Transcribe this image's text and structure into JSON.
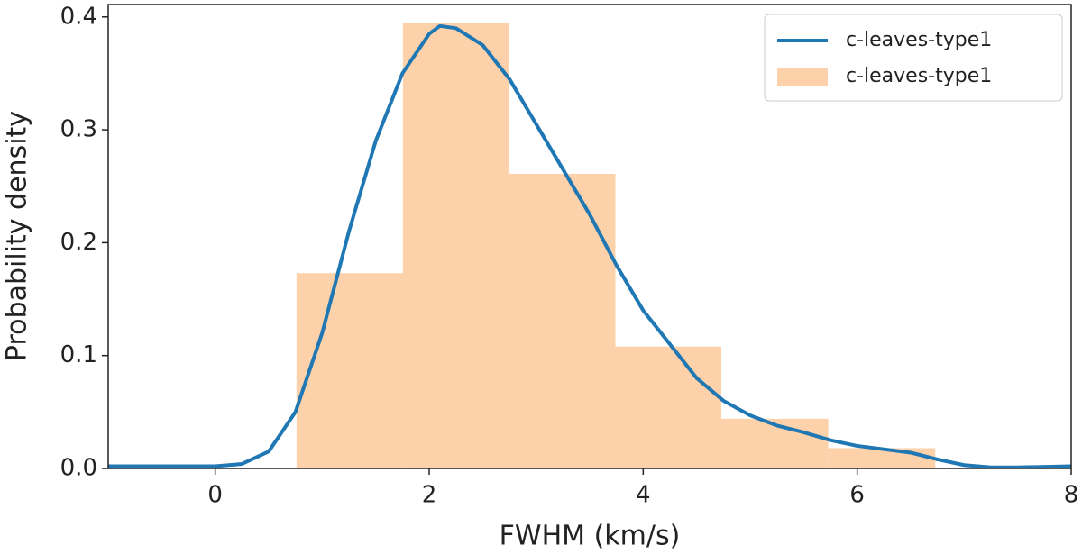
{
  "chart_data": {
    "type": "histogram",
    "xlabel": "FWHM (km/s)",
    "ylabel": "Probability density",
    "xlim": [
      -1,
      8
    ],
    "ylim": [
      0,
      0.411
    ],
    "xticks": [
      0,
      2,
      4,
      6,
      8
    ],
    "yticks": [
      {
        "value": 0,
        "label": "0.0"
      },
      0.1,
      0.2,
      0.3,
      0.4
    ],
    "legend": "upper right",
    "series": [
      {
        "type": "line",
        "name": "c-leaves-type1",
        "color": "#1f77b4",
        "x": [
          -1,
          0,
          0.25,
          0.5,
          0.75,
          1.0,
          1.25,
          1.5,
          1.75,
          2.0,
          2.1,
          2.25,
          2.5,
          2.75,
          3.0,
          3.25,
          3.5,
          3.75,
          4.0,
          4.25,
          4.5,
          4.75,
          5.0,
          5.25,
          5.5,
          5.75,
          6.0,
          6.25,
          6.5,
          6.75,
          7.0,
          7.25,
          7.5,
          8
        ],
        "values": [
          0.002,
          0.002,
          0.004,
          0.015,
          0.05,
          0.12,
          0.21,
          0.29,
          0.35,
          0.385,
          0.392,
          0.39,
          0.375,
          0.345,
          0.305,
          0.265,
          0.225,
          0.18,
          0.14,
          0.11,
          0.08,
          0.06,
          0.047,
          0.038,
          0.032,
          0.025,
          0.02,
          0.017,
          0.014,
          0.008,
          0.003,
          0.001,
          0.001,
          0.002
        ]
      },
      {
        "type": "histogram",
        "name": "c-leaves-type1",
        "color": "#fdd1a9",
        "bins": [
          0.76,
          1.755,
          2.75,
          3.74,
          4.73,
          5.73,
          6.73
        ],
        "values": [
          0.173,
          0.395,
          0.261,
          0.108,
          0.044,
          0.018
        ]
      }
    ]
  }
}
